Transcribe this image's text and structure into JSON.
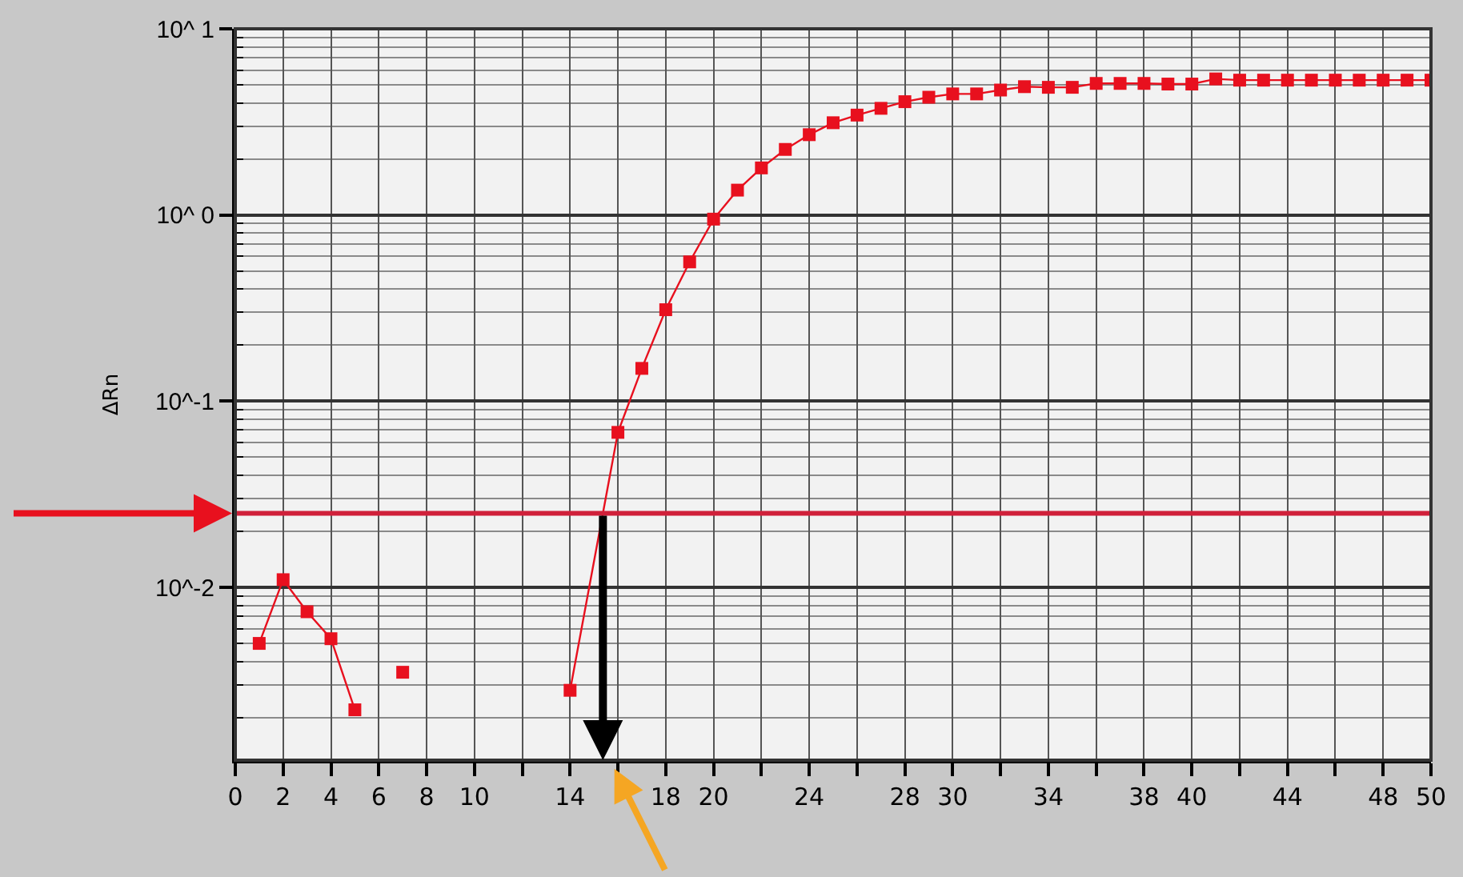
{
  "chart_data": {
    "type": "line",
    "ylabel": "ΔRn",
    "x": [
      1,
      2,
      3,
      4,
      5,
      6,
      7,
      8,
      14,
      16,
      17,
      18,
      19,
      20,
      21,
      22,
      23,
      24,
      25,
      26,
      27,
      28,
      29,
      30,
      31,
      32,
      33,
      34,
      35,
      36,
      37,
      38,
      39,
      40,
      41,
      42,
      43,
      44,
      45,
      46,
      47,
      48,
      49,
      50
    ],
    "series": [
      {
        "color": "#e8101e",
        "values": [
          0.005,
          0.011,
          0.0074,
          0.0053,
          0.0022,
          null,
          0.0035,
          null,
          0.0028,
          0.068,
          0.15,
          0.31,
          0.56,
          0.95,
          1.36,
          1.79,
          2.25,
          2.7,
          3.13,
          3.44,
          3.74,
          4.06,
          4.29,
          4.47,
          4.47,
          4.69,
          4.89,
          4.85,
          4.85,
          5.09,
          5.09,
          5.09,
          5.05,
          5.05,
          5.38,
          5.3,
          5.3,
          5.3,
          5.3,
          5.3,
          5.3,
          5.3,
          5.3,
          5.3
        ]
      }
    ],
    "log": "y",
    "xlim": [
      0,
      50
    ],
    "ylim": [
      0.00118,
      10
    ],
    "xticks": [
      0,
      2,
      4,
      6,
      8,
      10,
      {
        "value": 12,
        "label": null
      },
      14,
      {
        "value": 16,
        "label": null
      },
      18,
      20,
      {
        "value": 22,
        "label": null
      },
      24,
      {
        "value": 26,
        "label": null
      },
      28,
      30,
      {
        "value": 32,
        "label": null
      },
      34,
      {
        "value": 36,
        "label": null
      },
      38,
      40,
      {
        "value": 42,
        "label": null
      },
      44,
      {
        "value": 46,
        "label": null
      },
      48,
      50
    ],
    "yticks": [
      {
        "value": 0.002,
        "label": null
      },
      {
        "value": 0.003,
        "label": null
      },
      {
        "value": 0.004,
        "label": null
      },
      {
        "value": 0.005,
        "label": null
      },
      {
        "value": 0.006,
        "label": null
      },
      {
        "value": 0.007,
        "label": null
      },
      {
        "value": 0.008,
        "label": null
      },
      {
        "value": 0.009,
        "label": null
      },
      {
        "value": 0.01,
        "label": "10^-2"
      },
      {
        "value": 0.02,
        "label": null
      },
      {
        "value": 0.03,
        "label": null
      },
      {
        "value": 0.04,
        "label": null
      },
      {
        "value": 0.05,
        "label": null
      },
      {
        "value": 0.06,
        "label": null
      },
      {
        "value": 0.07,
        "label": null
      },
      {
        "value": 0.08,
        "label": null
      },
      {
        "value": 0.09,
        "label": null
      },
      {
        "value": 0.1,
        "label": "10^-1"
      },
      {
        "value": 0.2,
        "label": null
      },
      {
        "value": 0.3,
        "label": null
      },
      {
        "value": 0.4,
        "label": null
      },
      {
        "value": 0.5,
        "label": null
      },
      {
        "value": 0.6,
        "label": null
      },
      {
        "value": 0.7,
        "label": null
      },
      {
        "value": 0.8,
        "label": null
      },
      {
        "value": 0.9,
        "label": null
      },
      {
        "value": 1,
        "label": "10^ 0"
      },
      {
        "value": 2,
        "label": null
      },
      {
        "value": 3,
        "label": null
      },
      {
        "value": 4,
        "label": null
      },
      {
        "value": 5,
        "label": null
      },
      {
        "value": 6,
        "label": null
      },
      {
        "value": 7,
        "label": null
      },
      {
        "value": 8,
        "label": null
      },
      {
        "value": 9,
        "label": null
      },
      {
        "value": 10,
        "label": "10^ 1"
      }
    ],
    "ref_lines": [
      {
        "axis": "y",
        "value": 0.025,
        "color": "#d0203a"
      }
    ],
    "grid": true,
    "marker": "square",
    "line_style": "solid"
  }
}
